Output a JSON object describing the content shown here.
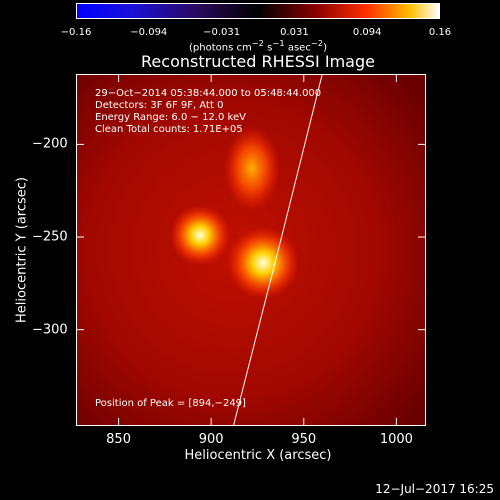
{
  "chart_data": {
    "type": "heatmap",
    "title": "Reconstructed RHESSI Image",
    "xlabel": "Heliocentric X (arcsec)",
    "ylabel": "Heliocentric Y (arcsec)",
    "xlim": [
      827,
      1016
    ],
    "ylim": [
      -352,
      -162
    ],
    "xticks": [
      "850",
      "900",
      "950",
      "1000"
    ],
    "yticks": [
      "−200",
      "−250",
      "−300"
    ],
    "colorbar": {
      "ticks": [
        "−0.16",
        "−0.094",
        "−0.031",
        "0.031",
        "0.094",
        "0.16"
      ],
      "units_text": "(photons cm",
      "units_exp1": "−2",
      "units_mid": " s",
      "units_exp2": "−1",
      "units_end": " asec",
      "units_exp3": "−2",
      "units_close": ")",
      "range": [
        -0.16,
        0.16
      ]
    },
    "annotations": [
      "29−Oct−2014 05:38:44.000 to 05:48:44.000",
      "Detectors: 3F 6F 9F, Att 0",
      "Energy Range: 6.0 − 12.0 keV",
      "Clean    Total counts: 1.71E+05"
    ],
    "peak_label": "Position of Peak = [894,−249]",
    "sources": [
      {
        "x": 894,
        "y": -249,
        "intensity": 0.16
      },
      {
        "x": 928,
        "y": -264,
        "intensity": 0.15
      },
      {
        "x": 922,
        "y": -213,
        "intensity": 0.09
      }
    ],
    "limb_line": [
      [
        960,
        -162
      ],
      [
        938,
        -250
      ],
      [
        912,
        -352
      ]
    ]
  },
  "date_stamp": "12−Jul−2017 16:25"
}
